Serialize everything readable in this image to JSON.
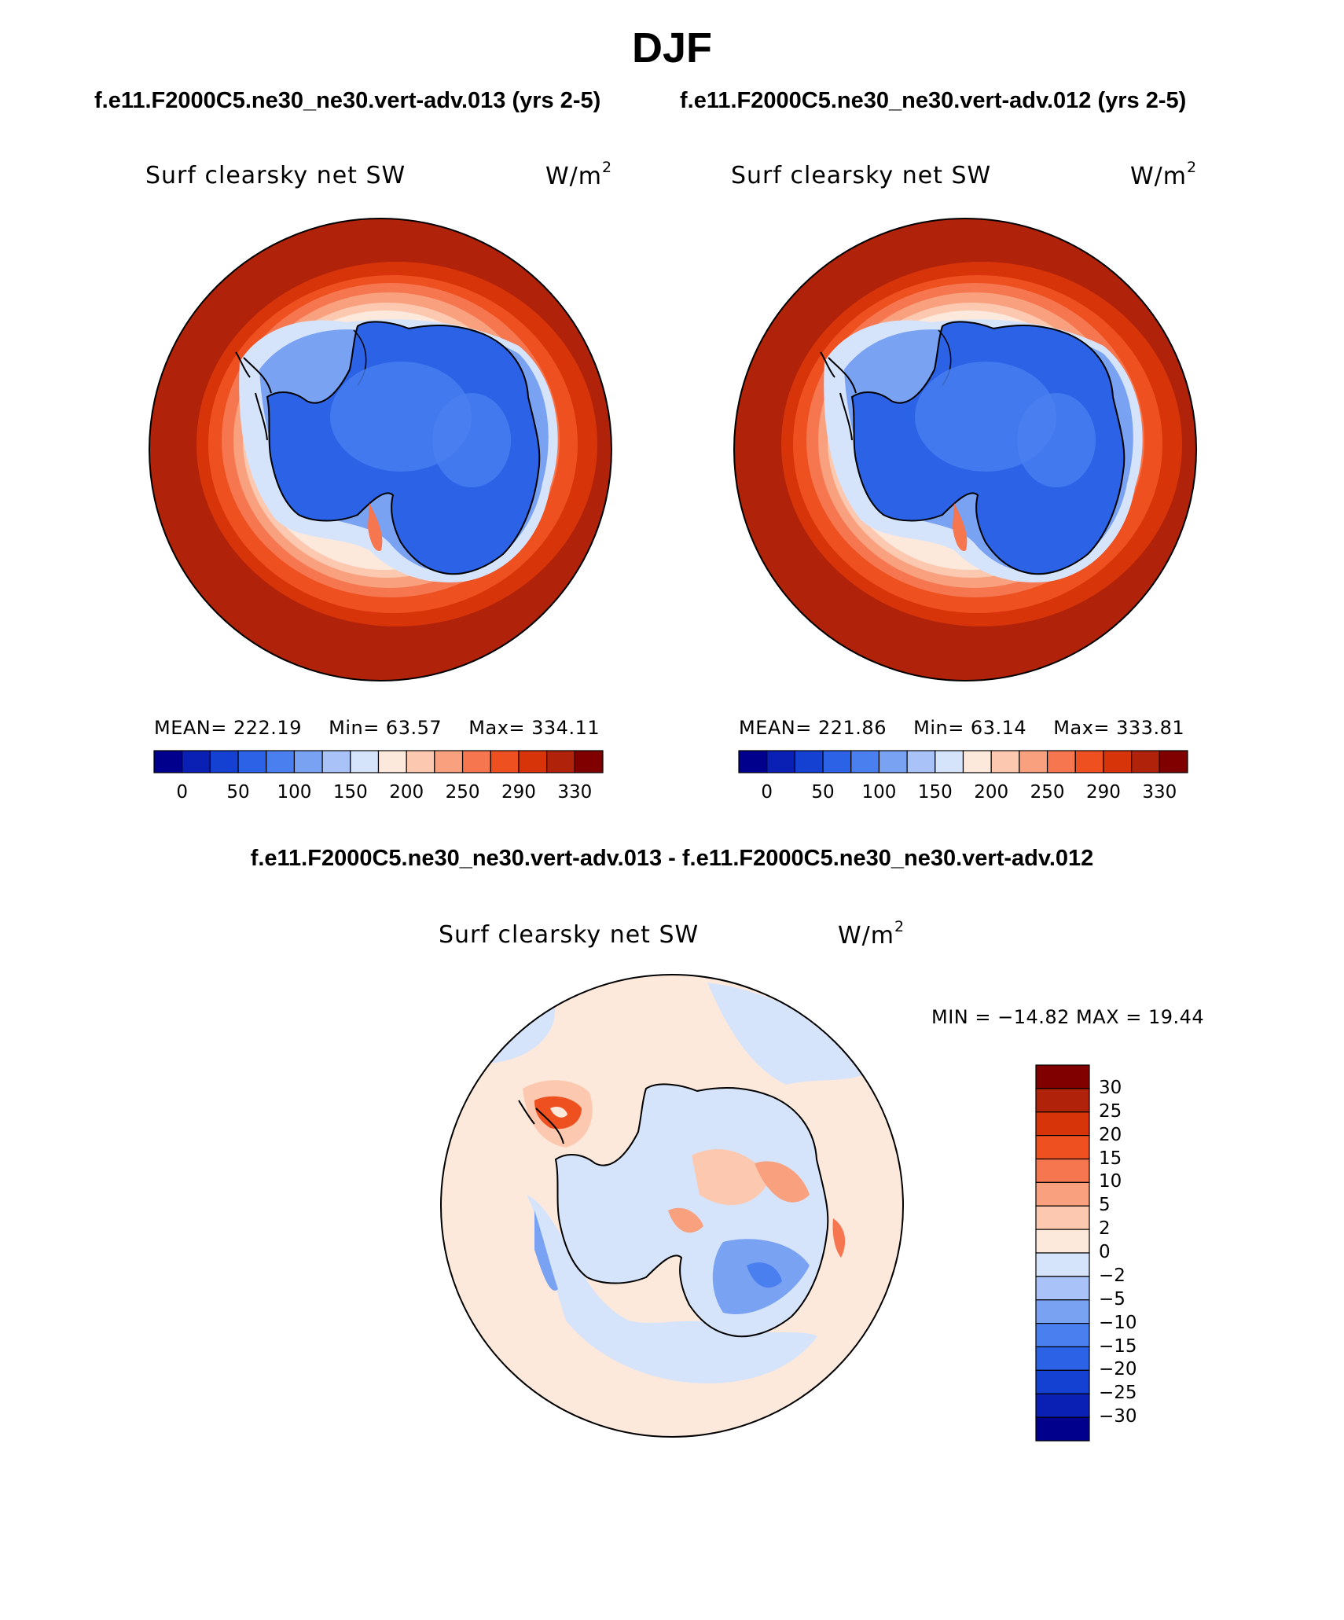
{
  "title": "DJF",
  "case_titles": {
    "left": "f.e11.F2000C5.ne30_ne30.vert-adv.013 (yrs 2-5)",
    "right": "f.e11.F2000C5.ne30_ne30.vert-adv.012 (yrs 2-5)"
  },
  "diff_title": "f.e11.F2000C5.ne30_ne30.vert-adv.013 - f.e11.F2000C5.ne30_ne30.vert-adv.012",
  "panels": {
    "left": {
      "label": "Surf clearsky net SW",
      "units_base": "W/m",
      "units_exp": "2",
      "mean_text": "MEAN= 222.19",
      "min_text": "Min=   63.57",
      "max_text": "Max= 334.11"
    },
    "right": {
      "label": "Surf clearsky net SW",
      "units_base": "W/m",
      "units_exp": "2",
      "mean_text": "MEAN= 221.86",
      "min_text": "Min=   63.14",
      "max_text": "Max= 333.81"
    },
    "diff": {
      "label": "Surf clearsky net SW",
      "units_base": "W/m",
      "units_exp": "2",
      "minmax_text": "MIN = −14.82 MAX =   19.44"
    }
  },
  "colorbars": {
    "abs_colors": [
      "#00008c",
      "#0a1fb4",
      "#1441d2",
      "#2c62e6",
      "#4a7ff0",
      "#7aa2f2",
      "#a9c2f7",
      "#d6e4fb",
      "#fde8dc",
      "#fcc9b0",
      "#f9a07e",
      "#f67650",
      "#ee5020",
      "#d8340a",
      "#b0220a",
      "#800000"
    ],
    "abs_labels": [
      "0",
      "50",
      "100",
      "150",
      "200",
      "250",
      "290",
      "330"
    ],
    "diff_colors": [
      "#800000",
      "#b0220a",
      "#d8340a",
      "#ee5020",
      "#f67650",
      "#f9a07e",
      "#fcc9b0",
      "#fde8dc",
      "#d6e4fb",
      "#a9c2f7",
      "#7aa2f2",
      "#4a7ff0",
      "#2c62e6",
      "#1441d2",
      "#0a1fb4",
      "#00008c"
    ],
    "diff_labels": [
      "30",
      "25",
      "20",
      "15",
      "10",
      "5",
      "2",
      "0",
      "−2",
      "−5",
      "−10",
      "−15",
      "−20",
      "−25",
      "−30"
    ]
  }
}
